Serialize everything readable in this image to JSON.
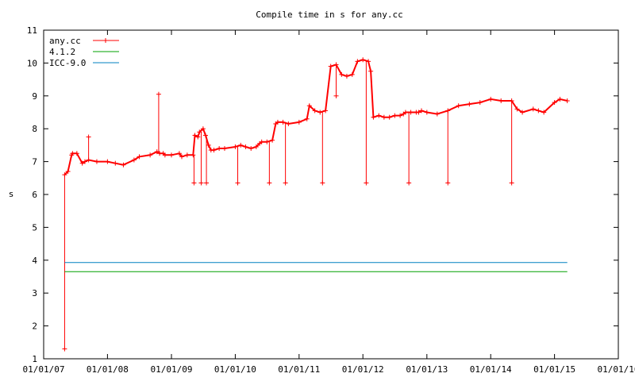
{
  "chart_data": {
    "type": "line",
    "title": "Compile time in s for any.cc",
    "xlabel": "",
    "ylabel": "s",
    "ylim": [
      1,
      11
    ],
    "xlim": [
      "2007-01-01",
      "2016-01-01"
    ],
    "y_ticks": [
      "1",
      "2",
      "3",
      "4",
      "5",
      "6",
      "7",
      "8",
      "9",
      "10",
      "11"
    ],
    "x_ticks": [
      "01/01/07",
      "01/01/08",
      "01/01/09",
      "01/01/10",
      "01/01/11",
      "01/01/12",
      "01/01/13",
      "01/01/14",
      "01/01/15",
      "01/01/16"
    ],
    "x_tick_dates": [
      "2007-01-01",
      "2008-01-01",
      "2009-01-01",
      "2010-01-01",
      "2011-01-01",
      "2012-01-01",
      "2013-01-01",
      "2014-01-01",
      "2015-01-01",
      "2016-01-01"
    ],
    "legend_position": "top-left",
    "grid": false,
    "series": [
      {
        "name": "any.cc",
        "color": "#ff0000",
        "marker": "plus",
        "x": [
          "2007-05-01",
          "2007-05-20",
          "2007-06-10",
          "2007-06-15",
          "2007-07-10",
          "2007-08-10",
          "2007-08-25",
          "2007-09-15",
          "2007-11-01",
          "2008-01-01",
          "2008-02-15",
          "2008-04-01",
          "2008-06-01",
          "2008-07-01",
          "2008-09-01",
          "2008-10-10",
          "2008-10-25",
          "2008-11-15",
          "2008-11-25",
          "2009-01-01",
          "2009-02-15",
          "2009-03-01",
          "2009-04-01",
          "2009-05-05",
          "2009-05-15",
          "2009-06-01",
          "2009-06-10",
          "2009-07-01",
          "2009-07-15",
          "2009-08-01",
          "2009-08-15",
          "2009-09-01",
          "2009-10-01",
          "2009-11-01",
          "2010-01-01",
          "2010-02-01",
          "2010-03-01",
          "2010-04-01",
          "2010-05-01",
          "2010-05-20",
          "2010-06-01",
          "2010-07-01",
          "2010-08-01",
          "2010-08-20",
          "2010-09-01",
          "2010-10-01",
          "2010-11-01",
          "2011-01-01",
          "2011-02-15",
          "2011-03-01",
          "2011-04-01",
          "2011-05-01",
          "2011-06-01",
          "2011-07-01",
          "2011-08-01",
          "2011-09-01",
          "2011-10-01",
          "2011-11-01",
          "2011-12-01",
          "2012-01-01",
          "2012-02-01",
          "2012-02-15",
          "2012-03-01",
          "2012-04-01",
          "2012-05-01",
          "2012-06-01",
          "2012-07-01",
          "2012-08-01",
          "2012-08-20",
          "2012-09-01",
          "2012-10-01",
          "2012-11-01",
          "2012-11-15",
          "2012-12-01",
          "2013-01-01",
          "2013-03-01",
          "2013-05-01",
          "2013-07-01",
          "2013-09-01",
          "2013-11-01",
          "2014-01-01",
          "2014-03-01",
          "2014-05-01",
          "2014-06-01",
          "2014-07-01",
          "2014-09-01",
          "2014-10-01",
          "2014-11-01",
          "2015-01-01",
          "2015-02-01",
          "2015-03-15"
        ],
        "y": [
          6.6,
          6.7,
          7.2,
          7.25,
          7.25,
          6.95,
          7.0,
          7.05,
          7.0,
          7.0,
          6.95,
          6.9,
          7.05,
          7.15,
          7.2,
          7.3,
          7.25,
          7.25,
          7.2,
          7.2,
          7.25,
          7.15,
          7.2,
          7.2,
          7.8,
          7.75,
          7.9,
          8.0,
          7.8,
          7.5,
          7.35,
          7.35,
          7.4,
          7.4,
          7.45,
          7.5,
          7.45,
          7.4,
          7.45,
          7.55,
          7.6,
          7.6,
          7.65,
          8.15,
          8.2,
          8.2,
          8.15,
          8.2,
          8.3,
          8.7,
          8.55,
          8.5,
          8.55,
          9.9,
          9.95,
          9.65,
          9.6,
          9.65,
          10.05,
          10.1,
          10.05,
          9.75,
          8.35,
          8.4,
          8.35,
          8.35,
          8.4,
          8.4,
          8.45,
          8.5,
          8.5,
          8.5,
          8.5,
          8.55,
          8.5,
          8.45,
          8.55,
          8.7,
          8.75,
          8.8,
          8.9,
          8.85,
          8.85,
          8.6,
          8.5,
          8.6,
          8.55,
          8.5,
          8.8,
          8.9,
          8.85
        ],
        "spikes": [
          {
            "x": "2007-05-01",
            "y": 1.3
          },
          {
            "x": "2007-09-15",
            "y": 7.75
          },
          {
            "x": "2008-10-20",
            "y": 9.05
          },
          {
            "x": "2009-05-10",
            "y": 6.35
          },
          {
            "x": "2009-06-20",
            "y": 6.35
          },
          {
            "x": "2009-07-20",
            "y": 6.35
          },
          {
            "x": "2010-01-15",
            "y": 6.35
          },
          {
            "x": "2010-07-15",
            "y": 6.35
          },
          {
            "x": "2010-10-15",
            "y": 6.35
          },
          {
            "x": "2011-05-15",
            "y": 6.35
          },
          {
            "x": "2011-08-01",
            "y": 9.0
          },
          {
            "x": "2012-01-20",
            "y": 6.35
          },
          {
            "x": "2012-09-20",
            "y": 6.35
          },
          {
            "x": "2013-05-01",
            "y": 6.35
          },
          {
            "x": "2014-05-01",
            "y": 6.35
          }
        ]
      },
      {
        "name": "4.1.2",
        "color": "#00a000",
        "x": [
          "2007-05-01",
          "2015-03-15"
        ],
        "y": [
          3.65,
          3.65
        ]
      },
      {
        "name": "ICC-9.0",
        "color": "#0080c0",
        "x": [
          "2007-05-01",
          "2015-03-15"
        ],
        "y": [
          3.93,
          3.93
        ]
      }
    ]
  }
}
